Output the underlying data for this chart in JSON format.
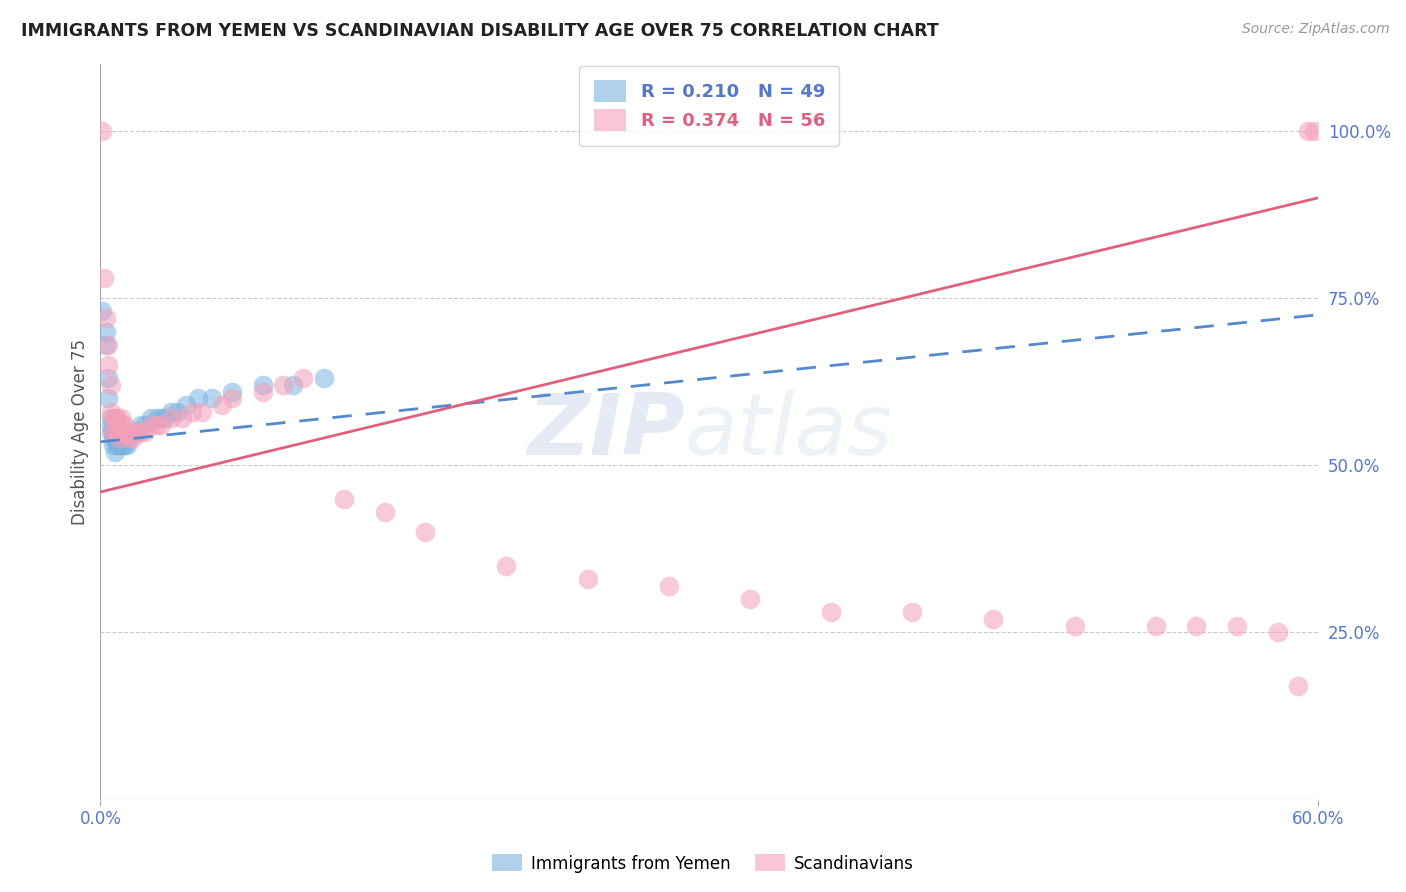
{
  "title": "IMMIGRANTS FROM YEMEN VS SCANDINAVIAN DISABILITY AGE OVER 75 CORRELATION CHART",
  "source": "Source: ZipAtlas.com",
  "ylabel": "Disability Age Over 75",
  "xmin": 0.0,
  "xmax": 0.6,
  "ymin": 0.0,
  "ymax": 1.1,
  "yticks": [
    0.25,
    0.5,
    0.75,
    1.0
  ],
  "ytick_labels": [
    "25.0%",
    "50.0%",
    "75.0%",
    "100.0%"
  ],
  "xtick_positions": [
    0.0,
    0.6
  ],
  "xtick_labels": [
    "0.0%",
    "60.0%"
  ],
  "grid_color": "#cccccc",
  "background_color": "#ffffff",
  "legend_R1": "R = 0.210",
  "legend_N1": "N = 49",
  "legend_R2": "R = 0.374",
  "legend_N2": "N = 56",
  "blue_color": "#7bb3e0",
  "pink_color": "#f4a0b8",
  "blue_scatter_x": [
    0.001,
    0.003,
    0.003,
    0.004,
    0.004,
    0.005,
    0.005,
    0.005,
    0.006,
    0.006,
    0.006,
    0.007,
    0.007,
    0.007,
    0.008,
    0.008,
    0.008,
    0.009,
    0.009,
    0.009,
    0.01,
    0.01,
    0.01,
    0.011,
    0.011,
    0.012,
    0.012,
    0.013,
    0.013,
    0.014,
    0.015,
    0.016,
    0.017,
    0.018,
    0.02,
    0.022,
    0.025,
    0.028,
    0.03,
    0.032,
    0.035,
    0.038,
    0.042,
    0.048,
    0.055,
    0.065,
    0.08,
    0.095,
    0.11
  ],
  "blue_scatter_y": [
    0.73,
    0.7,
    0.68,
    0.63,
    0.6,
    0.57,
    0.56,
    0.55,
    0.55,
    0.54,
    0.53,
    0.55,
    0.54,
    0.52,
    0.55,
    0.54,
    0.53,
    0.55,
    0.54,
    0.53,
    0.54,
    0.54,
    0.53,
    0.54,
    0.53,
    0.54,
    0.53,
    0.54,
    0.53,
    0.54,
    0.55,
    0.55,
    0.55,
    0.55,
    0.56,
    0.56,
    0.57,
    0.57,
    0.57,
    0.57,
    0.58,
    0.58,
    0.59,
    0.6,
    0.6,
    0.61,
    0.62,
    0.62,
    0.63
  ],
  "pink_scatter_x": [
    0.001,
    0.002,
    0.003,
    0.004,
    0.004,
    0.005,
    0.005,
    0.006,
    0.006,
    0.007,
    0.007,
    0.008,
    0.008,
    0.009,
    0.009,
    0.01,
    0.01,
    0.011,
    0.012,
    0.013,
    0.014,
    0.015,
    0.016,
    0.018,
    0.02,
    0.022,
    0.025,
    0.028,
    0.03,
    0.035,
    0.04,
    0.045,
    0.05,
    0.06,
    0.065,
    0.08,
    0.09,
    0.1,
    0.12,
    0.14,
    0.16,
    0.2,
    0.24,
    0.28,
    0.32,
    0.36,
    0.4,
    0.44,
    0.48,
    0.52,
    0.54,
    0.56,
    0.58,
    0.59,
    0.595,
    0.598
  ],
  "pink_scatter_y": [
    1.0,
    0.78,
    0.72,
    0.68,
    0.65,
    0.62,
    0.58,
    0.57,
    0.55,
    0.57,
    0.55,
    0.57,
    0.55,
    0.56,
    0.54,
    0.57,
    0.55,
    0.56,
    0.56,
    0.55,
    0.54,
    0.55,
    0.54,
    0.55,
    0.55,
    0.55,
    0.56,
    0.56,
    0.56,
    0.57,
    0.57,
    0.58,
    0.58,
    0.59,
    0.6,
    0.61,
    0.62,
    0.63,
    0.45,
    0.43,
    0.4,
    0.35,
    0.33,
    0.32,
    0.3,
    0.28,
    0.28,
    0.27,
    0.26,
    0.26,
    0.26,
    0.26,
    0.25,
    0.17,
    1.0,
    1.0
  ],
  "blue_line_x": [
    0.0,
    0.6
  ],
  "blue_line_y": [
    0.535,
    0.725
  ],
  "pink_line_x": [
    0.0,
    0.6
  ],
  "pink_line_y": [
    0.46,
    0.9
  ]
}
